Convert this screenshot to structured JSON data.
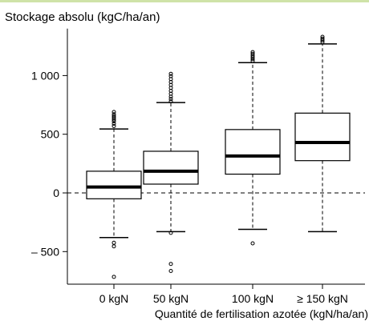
{
  "chart_data": {
    "type": "boxplot",
    "ylabel": "Stockage absolu (kgC/ha/an)",
    "xlabel": "Quantité de fertilisation azotée (kgN/ha/an)",
    "ylim": [
      -780,
      1400
    ],
    "yticks": [
      -500,
      0,
      500,
      1000
    ],
    "ytick_labels": [
      "– 500",
      "0",
      "500",
      "1 000"
    ],
    "reference_line": 0,
    "categories": [
      "0 kgN",
      "50 kgN",
      "100 kgN",
      "≥ 150 kgN"
    ],
    "boxes": [
      {
        "category": "0 kgN",
        "whisker_low": -380,
        "q1": -50,
        "median": 50,
        "q3": 185,
        "whisker_high": 545,
        "outliers_high": [
          570,
          590,
          610,
          625,
          640,
          655,
          670,
          690
        ],
        "outliers_low": [
          -425,
          -455,
          -715
        ]
      },
      {
        "category": "50 kgN",
        "whisker_low": -330,
        "q1": 75,
        "median": 185,
        "q3": 355,
        "whisker_high": 770,
        "outliers_high": [
          780,
          800,
          820,
          845,
          870,
          895,
          920,
          945,
          970,
          995,
          1015
        ],
        "outliers_low": [
          -340,
          -605,
          -665
        ]
      },
      {
        "category": "100 kgN",
        "whisker_low": -310,
        "q1": 160,
        "median": 315,
        "q3": 540,
        "whisker_high": 1110,
        "outliers_high": [
          1125,
          1140,
          1155,
          1170,
          1185,
          1200
        ],
        "outliers_low": [
          -430
        ]
      },
      {
        "category": "≥ 150 kgN",
        "whisker_low": -330,
        "q1": 275,
        "median": 430,
        "q3": 680,
        "whisker_high": 1270,
        "outliers_high": [
          1285,
          1300,
          1315,
          1330
        ],
        "outliers_low": []
      }
    ],
    "grid": false,
    "legend": "none"
  }
}
